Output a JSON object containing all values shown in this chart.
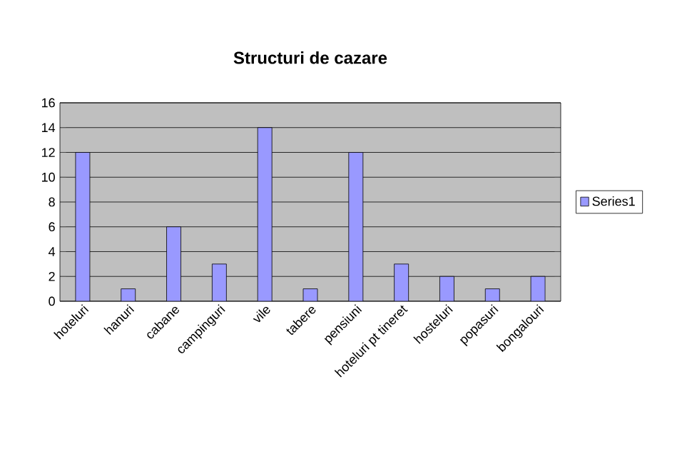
{
  "chart_data": {
    "type": "bar",
    "title": "Structuri de cazare",
    "categories": [
      "hoteluri",
      "hanuri",
      "cabane",
      "campinguri",
      "vile",
      "tabere",
      "pensiuni",
      "hoteluri pt tineret",
      "hosteluri",
      "popasuri",
      "bongalouri"
    ],
    "series": [
      {
        "name": "Series1",
        "color": "#9999ff",
        "values": [
          12,
          1,
          6,
          3,
          14,
          1,
          12,
          3,
          2,
          1,
          2
        ]
      }
    ],
    "ylim": [
      0,
      16
    ],
    "yticks": [
      0,
      2,
      4,
      6,
      8,
      10,
      12,
      14,
      16
    ],
    "grid": "y",
    "legend": "right"
  }
}
